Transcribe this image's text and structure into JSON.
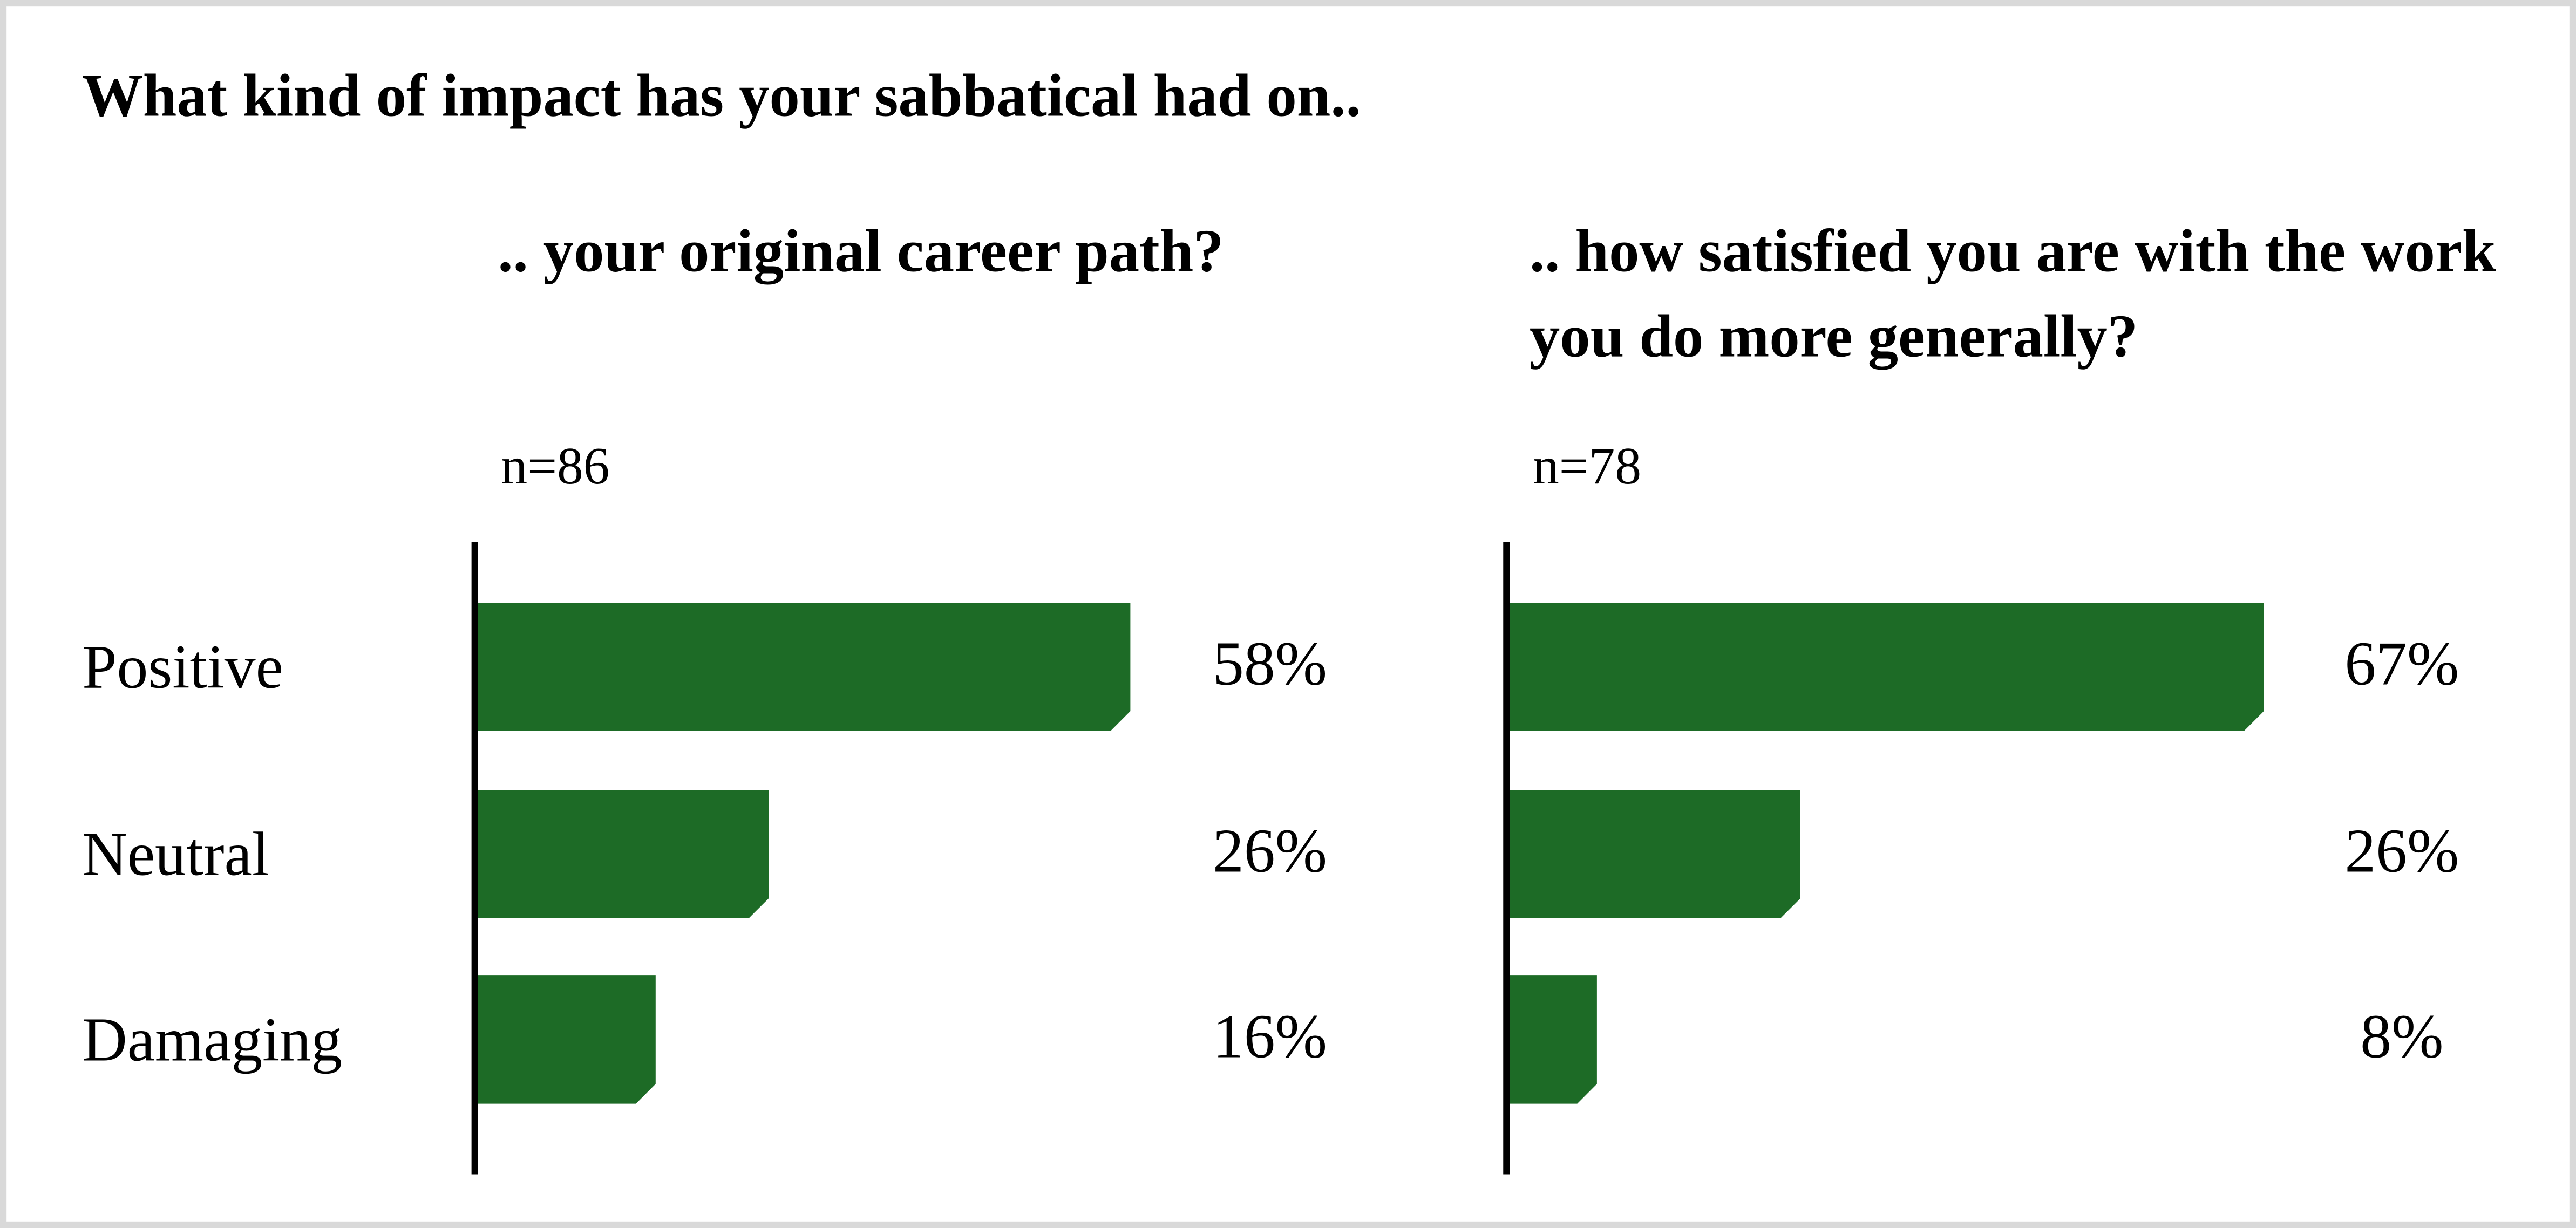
{
  "title": "What kind of impact has your sabbatical had on..",
  "chart_data": [
    {
      "type": "bar",
      "title": ".. your original career path?",
      "subtitle": "n=86",
      "color": "#1d6b26",
      "categories": [
        "Positive",
        "Neutral",
        "Damaging"
      ],
      "values": [
        58,
        26,
        16
      ],
      "value_labels": [
        "58%",
        "26%",
        "16%"
      ]
    },
    {
      "type": "bar",
      "title": ".. how satisfied you are with the work you do more generally?",
      "subtitle": "n=78",
      "color": "#1d6b26",
      "values": [
        67,
        26,
        8
      ],
      "value_labels": [
        "67%",
        "26%",
        "8%"
      ]
    }
  ]
}
